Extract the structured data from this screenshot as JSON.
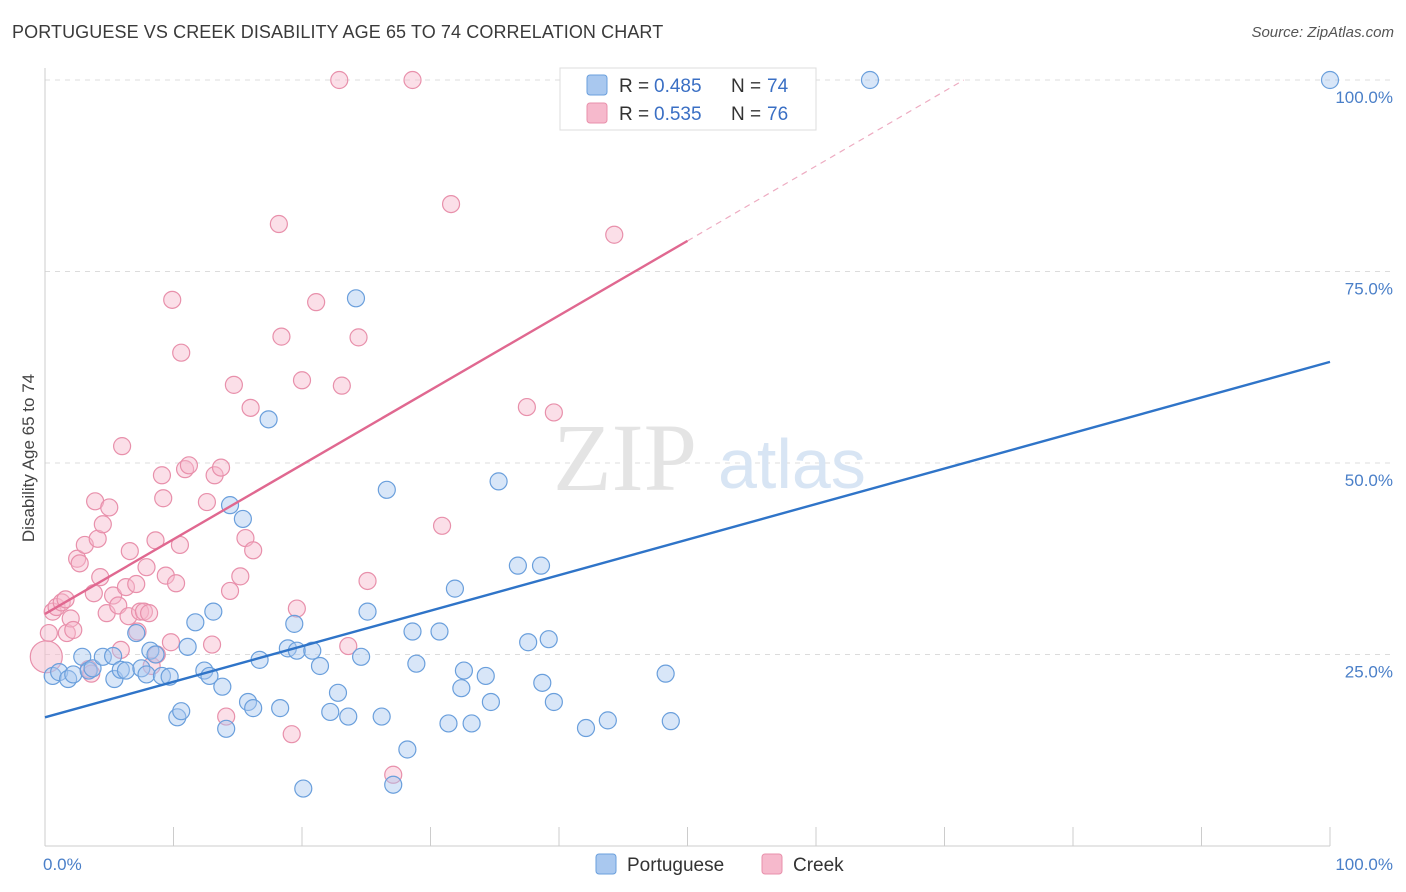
{
  "title": "PORTUGUESE VS CREEK DISABILITY AGE 65 TO 74 CORRELATION CHART",
  "source": "Source: ZipAtlas.com",
  "watermark": {
    "zip": "ZIP",
    "atlas": "atlas"
  },
  "legend_top": {
    "r_label": "R =",
    "n_label": "N =",
    "rows": [
      {
        "series": "Portuguese",
        "r": "0.485",
        "n": "74"
      },
      {
        "series": "Creek",
        "r": "0.535",
        "n": "76"
      }
    ]
  },
  "legend_bottom": [
    "Portuguese",
    "Creek"
  ],
  "colors": {
    "portuguese_fill": "#a9c8ef",
    "portuguese_stroke": "#6a9fdc",
    "portuguese_line": "#2f74c8",
    "creek_fill": "#f6b9cc",
    "creek_stroke": "#e890ab",
    "creek_line": "#e06890",
    "grid": "#dcdcdc",
    "tick_text": "#4a7fc8"
  },
  "chart_data": {
    "type": "scatter",
    "ylabel": "Disability Age 65 to 74",
    "xlim": [
      0,
      100
    ],
    "ylim": [
      0,
      100
    ],
    "x_tick_labels": [
      {
        "value": 0,
        "label": "0.0%"
      },
      {
        "value": 100,
        "label": "100.0%"
      }
    ],
    "y_tick_labels": [
      {
        "value": 25,
        "label": "25.0%"
      },
      {
        "value": 50,
        "label": "50.0%"
      },
      {
        "value": 75,
        "label": "75.0%"
      },
      {
        "value": 100,
        "label": "100.0%"
      }
    ],
    "grid": true,
    "legend_position": "top-center",
    "series": [
      {
        "name": "Portuguese",
        "trend": {
          "x0": 0,
          "y0": 16.8,
          "x1": 100,
          "y1": 63.2
        },
        "points": [
          [
            0.6,
            22.2
          ],
          [
            1.1,
            22.7
          ],
          [
            1.8,
            21.8
          ],
          [
            2.2,
            22.4
          ],
          [
            2.9,
            24.7
          ],
          [
            3.4,
            22.9
          ],
          [
            3.7,
            23.2
          ],
          [
            4.5,
            24.7
          ],
          [
            5.3,
            24.8
          ],
          [
            5.4,
            21.8
          ],
          [
            5.9,
            23.0
          ],
          [
            6.3,
            22.9
          ],
          [
            7.1,
            27.8
          ],
          [
            7.5,
            23.2
          ],
          [
            7.9,
            22.4
          ],
          [
            8.2,
            25.5
          ],
          [
            8.6,
            25.0
          ],
          [
            9.1,
            22.2
          ],
          [
            9.7,
            22.1
          ],
          [
            10.3,
            16.8
          ],
          [
            10.6,
            17.6
          ],
          [
            11.1,
            26.0
          ],
          [
            11.7,
            29.2
          ],
          [
            12.4,
            22.9
          ],
          [
            12.8,
            22.2
          ],
          [
            13.1,
            30.6
          ],
          [
            13.8,
            20.8
          ],
          [
            14.1,
            15.3
          ],
          [
            14.4,
            44.5
          ],
          [
            15.4,
            42.7
          ],
          [
            15.8,
            18.8
          ],
          [
            16.2,
            18.0
          ],
          [
            16.7,
            24.3
          ],
          [
            17.4,
            55.7
          ],
          [
            18.3,
            18.0
          ],
          [
            18.9,
            25.8
          ],
          [
            19.4,
            29.0
          ],
          [
            19.6,
            25.5
          ],
          [
            20.1,
            7.5
          ],
          [
            20.8,
            25.5
          ],
          [
            21.4,
            23.5
          ],
          [
            22.2,
            17.5
          ],
          [
            22.8,
            20.0
          ],
          [
            23.6,
            16.9
          ],
          [
            24.2,
            71.5
          ],
          [
            24.6,
            24.7
          ],
          [
            25.1,
            30.6
          ],
          [
            26.2,
            16.9
          ],
          [
            26.6,
            46.5
          ],
          [
            27.1,
            8.0
          ],
          [
            28.2,
            12.6
          ],
          [
            28.6,
            28.0
          ],
          [
            28.9,
            23.8
          ],
          [
            30.7,
            28.0
          ],
          [
            31.4,
            16.0
          ],
          [
            31.9,
            33.6
          ],
          [
            32.4,
            20.6
          ],
          [
            32.6,
            22.9
          ],
          [
            33.2,
            16.0
          ],
          [
            34.3,
            22.2
          ],
          [
            34.7,
            18.8
          ],
          [
            35.3,
            47.6
          ],
          [
            36.8,
            36.6
          ],
          [
            37.6,
            26.6
          ],
          [
            38.6,
            36.6
          ],
          [
            38.7,
            21.3
          ],
          [
            39.2,
            27.0
          ],
          [
            39.6,
            18.8
          ],
          [
            42.1,
            15.4
          ],
          [
            43.8,
            16.4
          ],
          [
            48.3,
            22.5
          ],
          [
            48.7,
            16.3
          ],
          [
            64.2,
            100
          ],
          [
            100,
            100
          ]
        ]
      },
      {
        "name": "Creek",
        "trend": {
          "x0": 0,
          "y0": 30.3,
          "x1": 50.0,
          "y1": 79.0,
          "dash_to": {
            "x": 71.5,
            "y": 100
          }
        },
        "points": [
          [
            0.3,
            27.8
          ],
          [
            0.6,
            30.6
          ],
          [
            0.9,
            31.2
          ],
          [
            1.3,
            31.8
          ],
          [
            1.6,
            32.2
          ],
          [
            1.7,
            27.8
          ],
          [
            2.0,
            29.7
          ],
          [
            2.2,
            28.2
          ],
          [
            2.5,
            37.5
          ],
          [
            2.7,
            36.9
          ],
          [
            3.1,
            39.3
          ],
          [
            3.4,
            23.1
          ],
          [
            3.6,
            22.5
          ],
          [
            3.8,
            33.0
          ],
          [
            3.9,
            45.0
          ],
          [
            4.1,
            40.1
          ],
          [
            4.3,
            35.1
          ],
          [
            4.5,
            42.0
          ],
          [
            4.8,
            30.4
          ],
          [
            5.0,
            44.2
          ],
          [
            5.3,
            32.7
          ],
          [
            5.7,
            31.4
          ],
          [
            5.9,
            25.6
          ],
          [
            6.0,
            52.2
          ],
          [
            6.3,
            33.8
          ],
          [
            6.5,
            30.0
          ],
          [
            6.6,
            38.5
          ],
          [
            7.1,
            34.2
          ],
          [
            7.2,
            28.0
          ],
          [
            7.4,
            30.6
          ],
          [
            7.7,
            30.6
          ],
          [
            7.9,
            36.4
          ],
          [
            8.1,
            30.4
          ],
          [
            8.3,
            23.5
          ],
          [
            8.6,
            39.9
          ],
          [
            8.7,
            25.0
          ],
          [
            9.1,
            48.4
          ],
          [
            9.2,
            45.4
          ],
          [
            9.4,
            35.3
          ],
          [
            9.8,
            26.6
          ],
          [
            9.9,
            71.3
          ],
          [
            10.2,
            34.3
          ],
          [
            10.5,
            39.3
          ],
          [
            10.6,
            64.4
          ],
          [
            10.9,
            49.2
          ],
          [
            11.2,
            49.7
          ],
          [
            12.6,
            44.9
          ],
          [
            13.0,
            26.3
          ],
          [
            13.2,
            48.4
          ],
          [
            13.7,
            49.4
          ],
          [
            14.1,
            16.9
          ],
          [
            14.4,
            33.3
          ],
          [
            14.7,
            60.2
          ],
          [
            15.2,
            35.2
          ],
          [
            15.6,
            40.2
          ],
          [
            16.0,
            57.2
          ],
          [
            16.2,
            38.6
          ],
          [
            18.2,
            81.2
          ],
          [
            18.4,
            66.5
          ],
          [
            19.2,
            14.6
          ],
          [
            19.6,
            31.0
          ],
          [
            20.0,
            60.8
          ],
          [
            21.1,
            71.0
          ],
          [
            22.9,
            100
          ],
          [
            23.1,
            60.1
          ],
          [
            23.6,
            26.1
          ],
          [
            24.4,
            66.4
          ],
          [
            25.1,
            34.6
          ],
          [
            27.1,
            9.3
          ],
          [
            28.6,
            100
          ],
          [
            30.9,
            41.8
          ],
          [
            31.6,
            83.8
          ],
          [
            37.5,
            57.3
          ],
          [
            39.6,
            56.6
          ],
          [
            44.3,
            79.8
          ],
          [
            0.1,
            24.7
          ]
        ]
      }
    ]
  }
}
